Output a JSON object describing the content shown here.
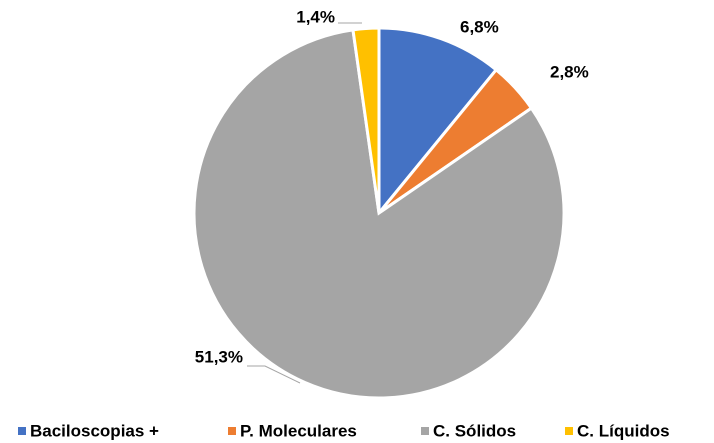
{
  "chart_data": {
    "type": "pie",
    "categories": [
      "Baciloscopias +",
      "P. Moleculares",
      "C. Sólidos",
      "C. Líquidos"
    ],
    "values": [
      6.8,
      2.8,
      51.3,
      1.4
    ],
    "value_labels": [
      "6,8%",
      "2,8%",
      "51,3%",
      "1,4%"
    ],
    "colors": [
      "#4472c4",
      "#ed7d31",
      "#a5a5a5",
      "#ffc000"
    ],
    "legend": "bottom"
  }
}
